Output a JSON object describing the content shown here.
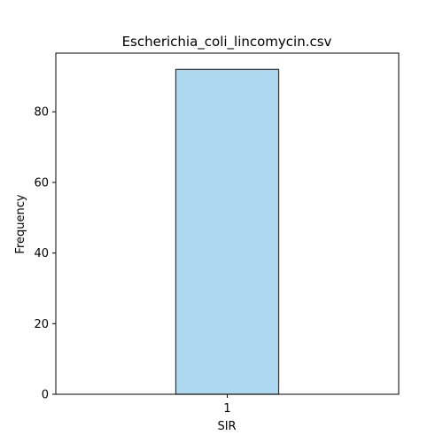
{
  "chart_data": {
    "type": "bar",
    "title": "Escherichia_coli_lincomycin.csv",
    "xlabel": "SIR",
    "ylabel": "Frequency",
    "categories": [
      "1"
    ],
    "values": [
      92
    ],
    "ylim": [
      0,
      96.6
    ],
    "yticks": [
      "0",
      "20",
      "40",
      "60",
      "80"
    ],
    "grid": false,
    "bar_color": "#add8ef",
    "bar_edge_color": "#333333"
  }
}
